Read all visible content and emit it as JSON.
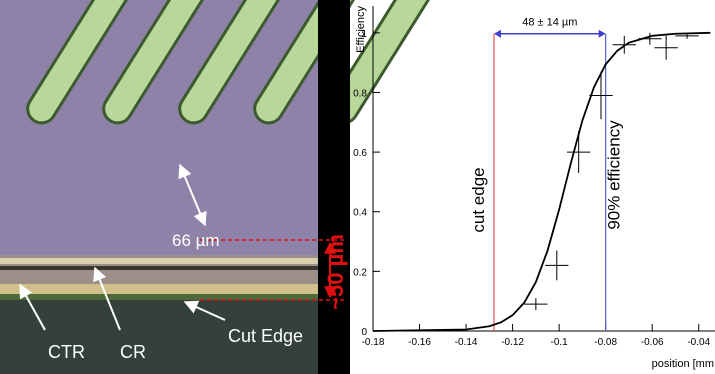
{
  "photo": {
    "feature_label": "66 µm",
    "gap_label": "~50 µm",
    "strip_labels": [
      "CTR",
      "CR",
      "Cut Edge"
    ]
  },
  "chart_data": {
    "type": "scatter",
    "y_label": "Efficiency",
    "x_label": "position [mm",
    "xlim": [
      -0.18,
      -0.033
    ],
    "ylim": [
      0,
      1.09
    ],
    "xticks": [
      -0.18,
      -0.16,
      -0.14,
      -0.12,
      -0.1,
      -0.08,
      -0.06,
      -0.04
    ],
    "yticks": [
      0,
      0.2,
      0.4,
      0.6,
      0.8,
      1
    ],
    "series": [
      {
        "color": "#000000",
        "x": [
          -0.11,
          -0.101,
          -0.0916,
          -0.082,
          -0.072,
          -0.061,
          -0.054,
          -0.045
        ],
        "values": [
          0.09,
          0.22,
          0.6,
          0.79,
          0.96,
          0.98,
          0.95,
          0.99
        ],
        "errors": [
          0.02,
          0.05,
          0.07,
          0.08,
          0.03,
          0.02,
          0.04,
          0.01
        ],
        "x_errors": [
          0.005,
          0.005,
          0.005,
          0.005,
          0.005,
          0.005,
          0.005,
          0.005
        ]
      },
      {
        "type": "line",
        "color": "#000000",
        "x": [
          -0.18,
          -0.14,
          -0.13,
          -0.125,
          -0.12,
          -0.115,
          -0.11,
          -0.105,
          -0.1,
          -0.095,
          -0.09,
          -0.085,
          -0.08,
          -0.075,
          -0.07,
          -0.06,
          -0.05,
          -0.035
        ],
        "values": [
          0,
          0.005,
          0.016,
          0.029,
          0.053,
          0.095,
          0.164,
          0.269,
          0.407,
          0.562,
          0.706,
          0.818,
          0.894,
          0.94,
          0.967,
          0.99,
          0.997,
          1.0
        ]
      }
    ],
    "markers": [
      {
        "x": -0.128,
        "color": "#e05050",
        "label": "cut edge"
      },
      {
        "x": -0.08,
        "color": "#5060d0",
        "label": "90% efficiency"
      }
    ],
    "span": {
      "y": 0.997,
      "color": "#4040d0",
      "label": "48 ± 14 µm"
    }
  }
}
